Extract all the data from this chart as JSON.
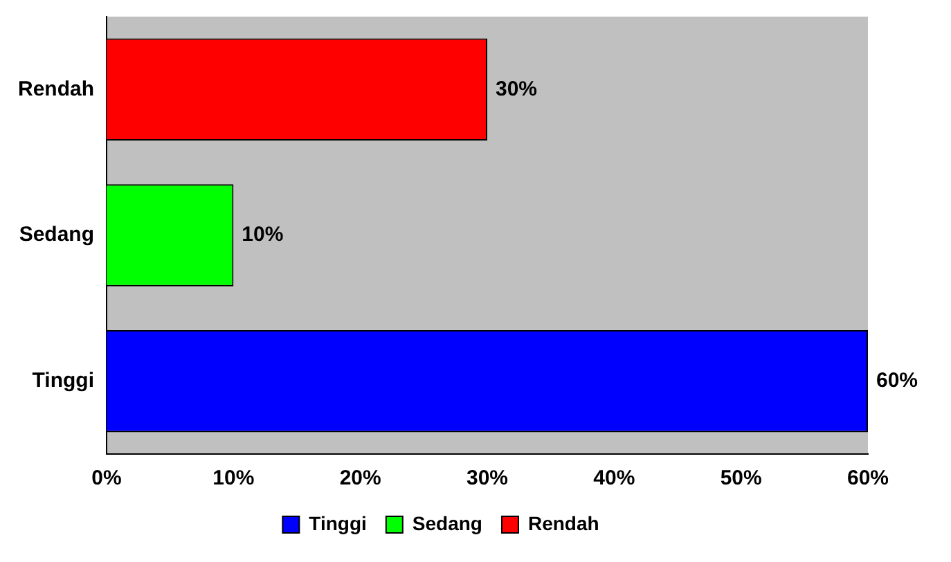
{
  "chart_data": {
    "type": "bar",
    "orientation": "horizontal",
    "categories": [
      "Rendah",
      "Sedang",
      "Tinggi"
    ],
    "series": [
      {
        "name": "Tinggi",
        "color": "#0000ff",
        "values": [
          null,
          null,
          60
        ],
        "value_labels": [
          null,
          null,
          "60%"
        ]
      },
      {
        "name": "Sedang",
        "color": "#00ff00",
        "values": [
          null,
          10,
          null
        ],
        "value_labels": [
          null,
          "10%",
          null
        ]
      },
      {
        "name": "Rendah",
        "color": "#ff0000",
        "values": [
          30,
          null,
          null
        ],
        "value_labels": [
          "30%",
          null,
          null
        ]
      }
    ],
    "xlim": [
      0,
      60
    ],
    "xticks": [
      {
        "value": 0,
        "label": "0%"
      },
      {
        "value": 10,
        "label": "10%"
      },
      {
        "value": 20,
        "label": "20%"
      },
      {
        "value": 30,
        "label": "30%"
      },
      {
        "value": 40,
        "label": "40%"
      },
      {
        "value": 50,
        "label": "50%"
      },
      {
        "value": 60,
        "label": "60%"
      }
    ],
    "grid": false,
    "legend": "bottom"
  }
}
